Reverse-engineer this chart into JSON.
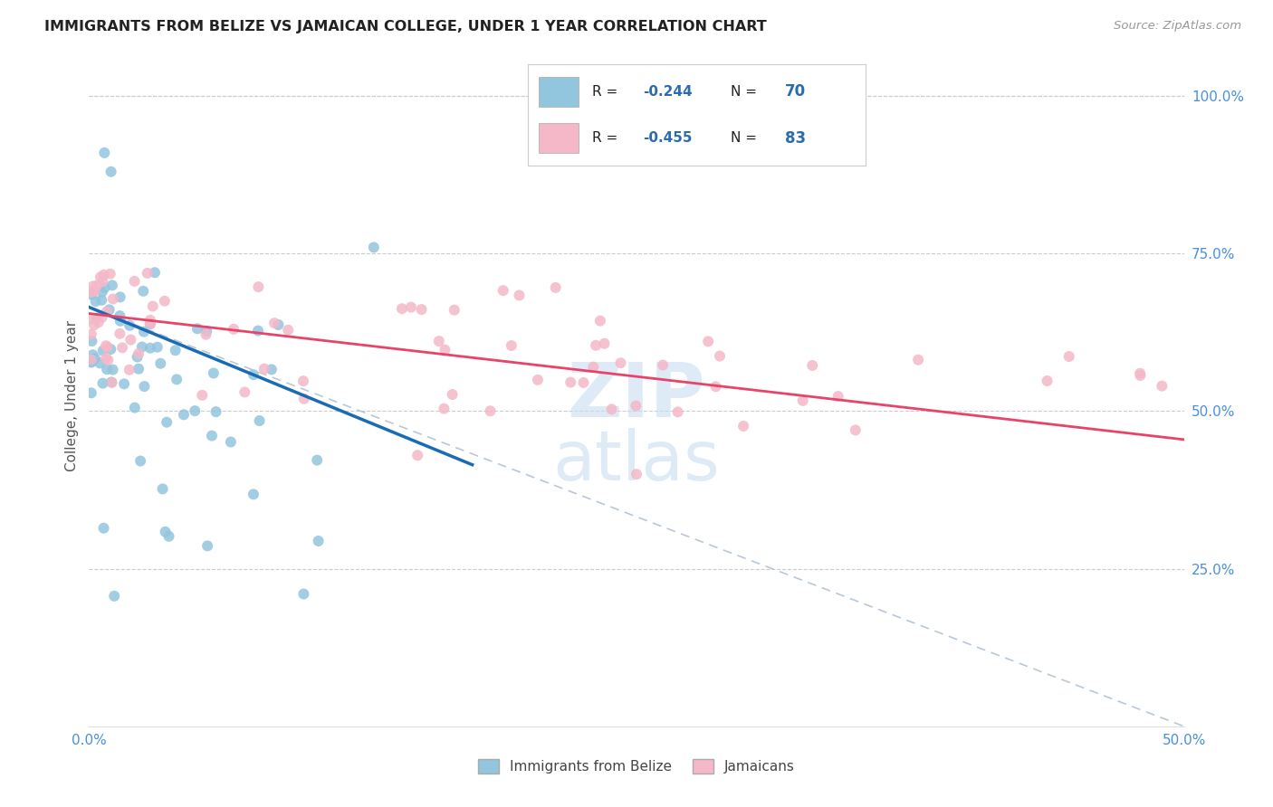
{
  "title": "IMMIGRANTS FROM BELIZE VS JAMAICAN COLLEGE, UNDER 1 YEAR CORRELATION CHART",
  "source": "Source: ZipAtlas.com",
  "ylabel": "College, Under 1 year",
  "x_min": 0.0,
  "x_max": 0.5,
  "y_min": 0.0,
  "y_max": 1.05,
  "x_tick_positions": [
    0.0,
    0.1,
    0.2,
    0.3,
    0.4,
    0.5
  ],
  "x_tick_labels": [
    "0.0%",
    "",
    "",
    "",
    "",
    "50.0%"
  ],
  "y_tick_labels_right": [
    "25.0%",
    "50.0%",
    "75.0%",
    "100.0%"
  ],
  "y_tick_vals_right": [
    0.25,
    0.5,
    0.75,
    1.0
  ],
  "color_blue": "#92c5de",
  "color_pink": "#f4b8c8",
  "color_blue_line": "#1a6bb5",
  "color_pink_line": "#e8446a",
  "color_dashed_line": "#b8c8d8",
  "color_text_blue": "#2b6cb0",
  "color_axis_text": "#4a90d9",
  "color_grid": "#cccccc",
  "watermark_color": "#c8dff0",
  "blue_line_x0": 0.0,
  "blue_line_y0": 0.665,
  "blue_line_x1": 0.175,
  "blue_line_y1": 0.415,
  "pink_line_x0": 0.0,
  "pink_line_y0": 0.655,
  "pink_line_x1": 0.5,
  "pink_line_y1": 0.455,
  "dash_line_x0": 0.0,
  "dash_line_y0": 0.665,
  "dash_line_x1": 0.5,
  "dash_line_y1": 0.0
}
